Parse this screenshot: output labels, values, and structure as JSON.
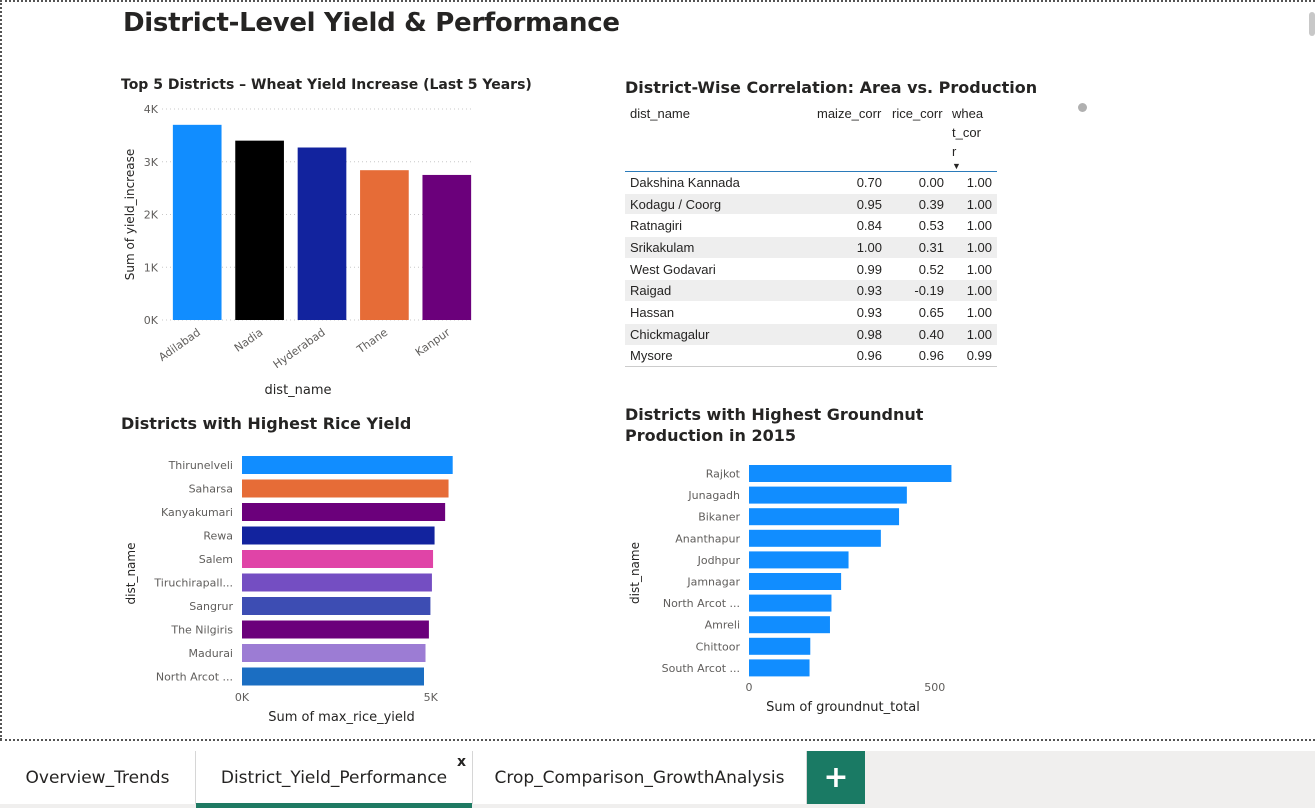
{
  "page": {
    "title": "District-Level Yield & Performance"
  },
  "visual_titles": {
    "wheat": "Top 5 Districts – Wheat Yield Increase (Last 5 Years)",
    "corr": "District-Wise Correlation: Area vs. Production",
    "rice": "Districts with Highest Rice Yield",
    "groundnut": "Districts with Highest Groundnut Production in 2015"
  },
  "chart_data": [
    {
      "type": "bar",
      "title": "Top 5 Districts – Wheat Yield Increase (Last 5 Years)",
      "xlabel": "dist_name",
      "ylabel": "Sum of yield_increase",
      "categories": [
        "Adilabad",
        "Nadia",
        "Hyderabad",
        "Thane",
        "Kanpur"
      ],
      "values": [
        3700,
        3400,
        3270,
        2840,
        2750
      ],
      "colors": [
        "#118DFF",
        "#000000",
        "#12239E",
        "#E66C37",
        "#6B007B"
      ],
      "ylim": [
        0,
        4000
      ],
      "yticks": [
        "0K",
        "1K",
        "2K",
        "3K",
        "4K"
      ],
      "grid": true
    },
    {
      "type": "bar",
      "orientation": "horizontal",
      "title": "Districts with Highest Rice Yield",
      "xlabel": "Sum of max_rice_yield",
      "ylabel": "dist_name",
      "categories": [
        "Thirunelveli",
        "Saharsa",
        "Kanyakumari",
        "Rewa",
        "Salem",
        "Tiruchirapall...",
        "Sangrur",
        "The Nilgiris",
        "Madurai",
        "North Arcot ..."
      ],
      "values": [
        5580,
        5470,
        5380,
        5100,
        5060,
        5030,
        4990,
        4950,
        4860,
        4820
      ],
      "colors": [
        "#118DFF",
        "#E66C37",
        "#6B007B",
        "#12239E",
        "#E044A7",
        "#744EC2",
        "#3D4DB3",
        "#6B007B",
        "#9C7CD4",
        "#1B6EC2"
      ],
      "xlim": [
        0,
        5800
      ],
      "xticks": [
        "0K",
        "5K"
      ]
    },
    {
      "type": "bar",
      "orientation": "horizontal",
      "title": "Districts with Highest Groundnut Production in 2015",
      "xlabel": "Sum of groundnut_total",
      "ylabel": "dist_name",
      "categories": [
        "Rajkot",
        "Junagadh",
        "Bikaner",
        "Ananthapur",
        "Jodhpur",
        "Jamnagar",
        "North Arcot ...",
        "Amreli",
        "Chittoor",
        "South Arcot ..."
      ],
      "values": [
        545,
        425,
        404,
        355,
        268,
        248,
        222,
        218,
        165,
        163
      ],
      "colors": [
        "#118DFF"
      ],
      "xlim": [
        0,
        560
      ],
      "xticks": [
        "0",
        "500"
      ]
    },
    {
      "type": "table",
      "title": "District-Wise Correlation: Area vs. Production",
      "columns": [
        "dist_name",
        "maize_corr",
        "rice_corr",
        "wheat_corr"
      ],
      "rows": [
        [
          "Dakshina Kannada",
          "0.70",
          "0.00",
          "1.00"
        ],
        [
          "Kodagu / Coorg",
          "0.95",
          "0.39",
          "1.00"
        ],
        [
          "Ratnagiri",
          "0.84",
          "0.53",
          "1.00"
        ],
        [
          "Srikakulam",
          "1.00",
          "0.31",
          "1.00"
        ],
        [
          "West Godavari",
          "0.99",
          "0.52",
          "1.00"
        ],
        [
          "Raigad",
          "0.93",
          "-0.19",
          "1.00"
        ],
        [
          "Hassan",
          "0.93",
          "0.65",
          "1.00"
        ],
        [
          "Chickmagalur",
          "0.98",
          "0.40",
          "1.00"
        ],
        [
          "Mysore",
          "0.96",
          "0.96",
          "0.99"
        ]
      ]
    }
  ],
  "table": {
    "headers": {
      "dist_name": "dist_name",
      "maize": "maize_corr",
      "rice": "rice_corr",
      "wheat_lines": [
        "whea",
        "t_cor",
        "r"
      ],
      "sort_icon": "▼"
    }
  },
  "tabs": {
    "items": [
      "Overview_Trends",
      "District_Yield_Performance",
      "Crop_Comparison_GrowthAnalysis"
    ],
    "active_index": 1,
    "close_label": "x",
    "add_label": "+",
    "accent": "#1a7a64"
  }
}
